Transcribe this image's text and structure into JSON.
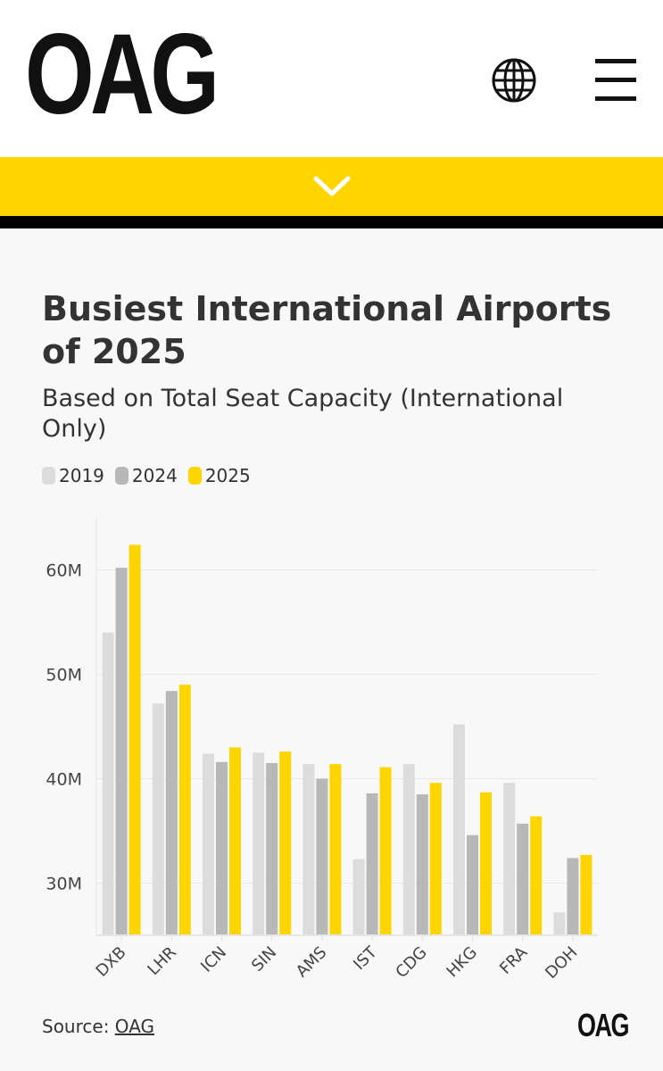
{
  "header": {
    "logo": "OAG",
    "globe_icon": "globe-icon",
    "menu_icon": "hamburger-menu-icon"
  },
  "banner": {
    "icon": "chevron-down-icon",
    "color": "#ffd500"
  },
  "title": "Busiest International Airports of 2025",
  "subtitle": "Based on Total Seat Capacity (International Only)",
  "source": {
    "label": "Source:",
    "link": "OAG"
  },
  "footer_logo": "OAG",
  "chart_data": {
    "type": "bar",
    "title": "Busiest International Airports of 2025",
    "subtitle": "Based on Total Seat Capacity (International Only)",
    "categories": [
      "DXB",
      "LHR",
      "ICN",
      "SIN",
      "AMS",
      "IST",
      "CDG",
      "HKG",
      "FRA",
      "DOH"
    ],
    "series": [
      {
        "name": "2019",
        "color": "#dcdcdc",
        "values": [
          54.0,
          47.2,
          42.4,
          42.5,
          41.4,
          32.3,
          41.4,
          45.2,
          39.6,
          27.2
        ]
      },
      {
        "name": "2024",
        "color": "#b8b8b8",
        "values": [
          60.2,
          48.4,
          41.6,
          41.5,
          40.0,
          38.6,
          38.5,
          34.6,
          35.7,
          32.4
        ]
      },
      {
        "name": "2025",
        "color": "#ffd500",
        "values": [
          62.4,
          49.0,
          43.0,
          42.6,
          41.4,
          41.1,
          39.6,
          38.7,
          36.4,
          32.7
        ]
      }
    ],
    "unit": "M",
    "yticks": [
      30,
      40,
      50,
      60
    ],
    "ytick_labels": [
      "30M",
      "40M",
      "50M",
      "60M"
    ],
    "ylim": [
      25,
      65
    ],
    "grid": true,
    "legend": "top-left"
  }
}
